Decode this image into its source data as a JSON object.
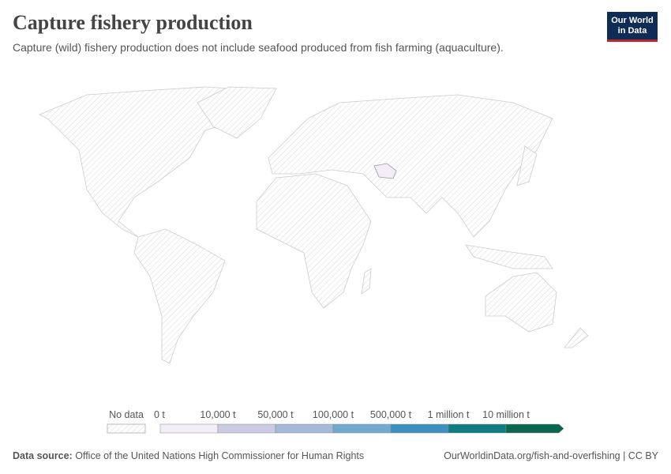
{
  "header": {
    "title": "Capture fishery production",
    "subtitle": "Capture (wild) fishery production does not include seafood produced from fish farming (aquaculture).",
    "logo": [
      "Our World",
      "in Data"
    ]
  },
  "legend": {
    "no_data": "No data",
    "ticks": [
      "0 t",
      "10,000 t",
      "50,000 t",
      "100,000 t",
      "500,000 t",
      "1 million t",
      "10 million t"
    ],
    "colors": [
      "#f2edf6",
      "#cacce4",
      "#a5b9d9",
      "#72aacf",
      "#3d8fc0",
      "#0f7c82",
      "#0b6650"
    ]
  },
  "footer": {
    "source_label": "Data source:",
    "source": "Office of the United Nations High Commissioner for Human Rights",
    "url": "OurWorldinData.org/fish-and-overfishing | CC BY"
  }
}
